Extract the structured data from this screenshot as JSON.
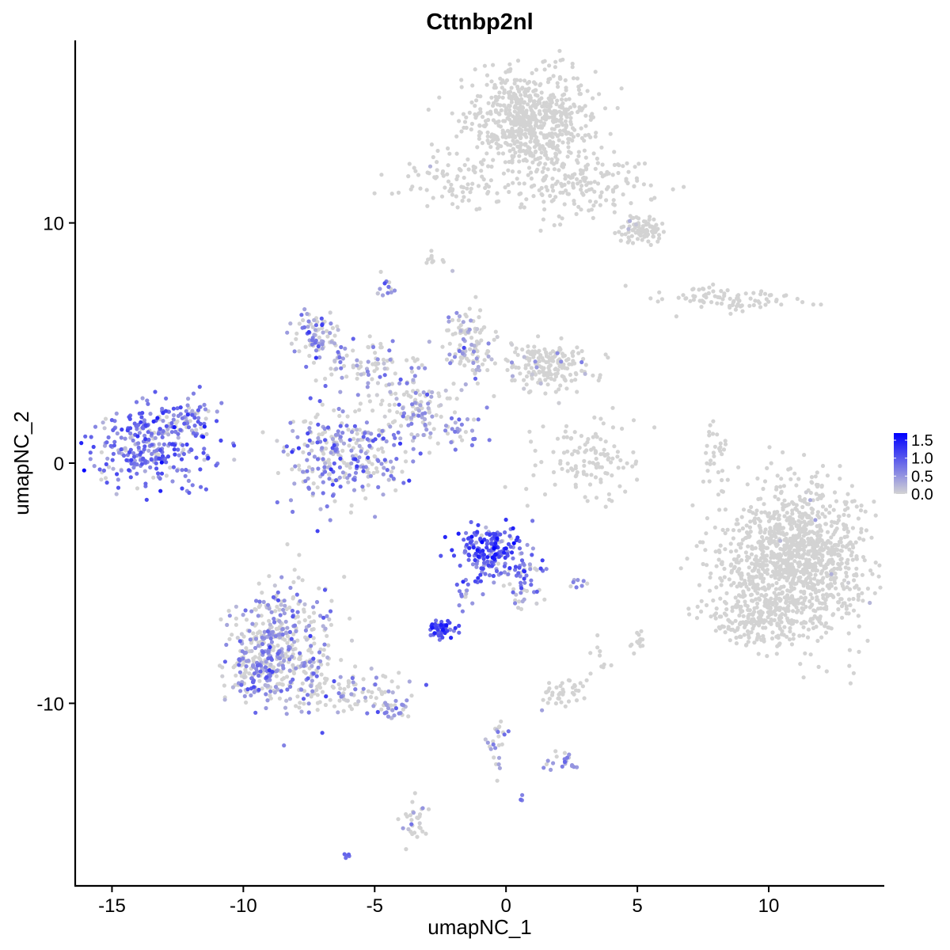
{
  "chart_data": {
    "type": "scatter",
    "title": "Cttnbp2nl",
    "xlabel": "umapNC_1",
    "ylabel": "umapNC_2",
    "xlim": [
      -16.4,
      14.4
    ],
    "ylim": [
      -17.6,
      17.6
    ],
    "xticks": [
      -15,
      -10,
      -5,
      0,
      5,
      10
    ],
    "xtick_labels": [
      "-15",
      "-10",
      "-5",
      "0",
      "5",
      "10"
    ],
    "yticks": [
      -10,
      0,
      10
    ],
    "ytick_labels": [
      "-10",
      "0",
      "10"
    ],
    "grid": false,
    "legend": {
      "placement": "right",
      "title": "",
      "labels": [
        "1.5",
        "1.0",
        "0.5",
        "0.0"
      ],
      "values": [
        1.5,
        1.0,
        0.5,
        0.0
      ],
      "color_low": "#D3D3D3",
      "color_high": "#0000FF"
    },
    "color_range": [
      0,
      1.7
    ],
    "point_color_low": "#D3D3D3",
    "point_color_high": "#0000FF",
    "clusters": [
      {
        "cx": -13.4,
        "cy": 0.8,
        "sx": 1.1,
        "sy": 0.9,
        "n": 320,
        "expr_mean": 0.75,
        "expr_sd": 0.3,
        "zero_frac": 0.12
      },
      {
        "cx": -12.0,
        "cy": 2.0,
        "sx": 0.5,
        "sy": 0.4,
        "n": 30,
        "expr_mean": 0.6,
        "expr_sd": 0.25,
        "zero_frac": 0.3
      },
      {
        "cx": -6.2,
        "cy": 0.3,
        "sx": 1.2,
        "sy": 1.0,
        "n": 300,
        "expr_mean": 0.6,
        "expr_sd": 0.3,
        "zero_frac": 0.35
      },
      {
        "cx": -7.2,
        "cy": 5.4,
        "sx": 0.5,
        "sy": 0.5,
        "n": 80,
        "expr_mean": 0.6,
        "expr_sd": 0.3,
        "zero_frac": 0.35
      },
      {
        "cx": -5.5,
        "cy": 4.2,
        "sx": 1.0,
        "sy": 0.6,
        "n": 80,
        "expr_mean": 0.4,
        "expr_sd": 0.3,
        "zero_frac": 0.5
      },
      {
        "cx": -3.6,
        "cy": 2.4,
        "sx": 0.8,
        "sy": 0.8,
        "n": 120,
        "expr_mean": 0.4,
        "expr_sd": 0.3,
        "zero_frac": 0.55
      },
      {
        "cx": -1.5,
        "cy": 5.0,
        "sx": 0.6,
        "sy": 0.8,
        "n": 110,
        "expr_mean": 0.35,
        "expr_sd": 0.3,
        "zero_frac": 0.65
      },
      {
        "cx": 1.6,
        "cy": 4.0,
        "sx": 0.8,
        "sy": 0.5,
        "n": 180,
        "expr_mean": 0.3,
        "expr_sd": 0.2,
        "zero_frac": 0.92
      },
      {
        "cx": -1.8,
        "cy": 1.2,
        "sx": 0.6,
        "sy": 0.4,
        "n": 30,
        "expr_mean": 0.6,
        "expr_sd": 0.2,
        "zero_frac": 0.2
      },
      {
        "cx": -4.6,
        "cy": 7.3,
        "sx": 0.2,
        "sy": 0.3,
        "n": 14,
        "expr_mean": 0.5,
        "expr_sd": 0.2,
        "zero_frac": 0.4
      },
      {
        "cx": 0.9,
        "cy": 14.2,
        "sx": 1.2,
        "sy": 1.1,
        "n": 700,
        "expr_mean": 0.2,
        "expr_sd": 0.1,
        "zero_frac": 1.0
      },
      {
        "cx": 2.9,
        "cy": 11.5,
        "sx": 1.3,
        "sy": 0.6,
        "n": 160,
        "expr_mean": 0.2,
        "expr_sd": 0.1,
        "zero_frac": 1.0
      },
      {
        "cx": 5.1,
        "cy": 9.7,
        "sx": 0.4,
        "sy": 0.3,
        "n": 90,
        "expr_mean": 0.2,
        "expr_sd": 0.1,
        "zero_frac": 0.98
      },
      {
        "cx": -2.0,
        "cy": 11.7,
        "sx": 0.9,
        "sy": 0.5,
        "n": 80,
        "expr_mean": 0.2,
        "expr_sd": 0.1,
        "zero_frac": 0.98
      },
      {
        "cx": -2.8,
        "cy": 8.5,
        "sx": 0.2,
        "sy": 0.15,
        "n": 10,
        "expr_mean": 0.2,
        "expr_sd": 0.1,
        "zero_frac": 1.0
      },
      {
        "cx": 8.5,
        "cy": 6.8,
        "sx": 1.2,
        "sy": 0.25,
        "n": 90,
        "expr_mean": 0.2,
        "expr_sd": 0.1,
        "zero_frac": 0.98
      },
      {
        "cx": 3.2,
        "cy": 0.2,
        "sx": 1.0,
        "sy": 0.8,
        "n": 120,
        "expr_mean": 0.2,
        "expr_sd": 0.1,
        "zero_frac": 1.0
      },
      {
        "cx": 8.0,
        "cy": 0.5,
        "sx": 0.25,
        "sy": 0.8,
        "n": 30,
        "expr_mean": 0.2,
        "expr_sd": 0.1,
        "zero_frac": 1.0
      },
      {
        "cx": 11.0,
        "cy": -4.0,
        "sx": 1.4,
        "sy": 1.6,
        "n": 1200,
        "expr_mean": 0.2,
        "expr_sd": 0.1,
        "zero_frac": 0.995
      },
      {
        "cx": 9.4,
        "cy": -6.6,
        "sx": 0.8,
        "sy": 0.5,
        "n": 150,
        "expr_mean": 0.2,
        "expr_sd": 0.1,
        "zero_frac": 0.99
      },
      {
        "cx": -0.6,
        "cy": -3.8,
        "sx": 0.6,
        "sy": 0.6,
        "n": 200,
        "expr_mean": 0.95,
        "expr_sd": 0.35,
        "zero_frac": 0.08
      },
      {
        "cx": 0.7,
        "cy": -4.9,
        "sx": 0.4,
        "sy": 0.6,
        "n": 50,
        "expr_mean": 0.7,
        "expr_sd": 0.3,
        "zero_frac": 0.3
      },
      {
        "cx": -2.5,
        "cy": -6.9,
        "sx": 0.35,
        "sy": 0.2,
        "n": 50,
        "expr_mean": 1.1,
        "expr_sd": 0.25,
        "zero_frac": 0.05
      },
      {
        "cx": -1.6,
        "cy": -5.7,
        "sx": 0.2,
        "sy": 0.4,
        "n": 12,
        "expr_mean": 0.6,
        "expr_sd": 0.2,
        "zero_frac": 0.3
      },
      {
        "cx": -8.5,
        "cy": -7.5,
        "sx": 1.0,
        "sy": 1.3,
        "n": 420,
        "expr_mean": 0.55,
        "expr_sd": 0.25,
        "zero_frac": 0.5
      },
      {
        "cx": -9.6,
        "cy": -8.8,
        "sx": 0.5,
        "sy": 0.6,
        "n": 100,
        "expr_mean": 0.6,
        "expr_sd": 0.25,
        "zero_frac": 0.35
      },
      {
        "cx": -6.0,
        "cy": -9.5,
        "sx": 1.0,
        "sy": 0.4,
        "n": 90,
        "expr_mean": 0.4,
        "expr_sd": 0.3,
        "zero_frac": 0.6
      },
      {
        "cx": -4.2,
        "cy": -10.3,
        "sx": 0.4,
        "sy": 0.2,
        "n": 30,
        "expr_mean": 0.6,
        "expr_sd": 0.2,
        "zero_frac": 0.45
      },
      {
        "cx": 2.1,
        "cy": -9.6,
        "sx": 0.5,
        "sy": 0.3,
        "n": 40,
        "expr_mean": 0.2,
        "expr_sd": 0.1,
        "zero_frac": 0.97
      },
      {
        "cx": 5.0,
        "cy": -7.4,
        "sx": 0.2,
        "sy": 0.3,
        "n": 14,
        "expr_mean": 0.2,
        "expr_sd": 0.1,
        "zero_frac": 1.0
      },
      {
        "cx": 2.9,
        "cy": -5.0,
        "sx": 0.2,
        "sy": 0.1,
        "n": 8,
        "expr_mean": 0.5,
        "expr_sd": 0.2,
        "zero_frac": 0.3
      },
      {
        "cx": 2.2,
        "cy": -12.5,
        "sx": 0.3,
        "sy": 0.25,
        "n": 20,
        "expr_mean": 0.5,
        "expr_sd": 0.2,
        "zero_frac": 0.4
      },
      {
        "cx": -0.3,
        "cy": -11.6,
        "sx": 0.2,
        "sy": 0.6,
        "n": 25,
        "expr_mean": 0.5,
        "expr_sd": 0.2,
        "zero_frac": 0.45
      },
      {
        "cx": -3.5,
        "cy": -14.8,
        "sx": 0.25,
        "sy": 0.5,
        "n": 30,
        "expr_mean": 0.3,
        "expr_sd": 0.2,
        "zero_frac": 0.8
      },
      {
        "cx": -6.0,
        "cy": -16.3,
        "sx": 0.1,
        "sy": 0.08,
        "n": 5,
        "expr_mean": 0.9,
        "expr_sd": 0.1,
        "zero_frac": 0.0
      },
      {
        "cx": 0.6,
        "cy": -13.9,
        "sx": 0.08,
        "sy": 0.1,
        "n": 3,
        "expr_mean": 0.7,
        "expr_sd": 0.1,
        "zero_frac": 0.0
      },
      {
        "cx": 3.6,
        "cy": -8.3,
        "sx": 0.3,
        "sy": 0.4,
        "n": 10,
        "expr_mean": 0.2,
        "expr_sd": 0.1,
        "zero_frac": 1.0
      }
    ]
  }
}
